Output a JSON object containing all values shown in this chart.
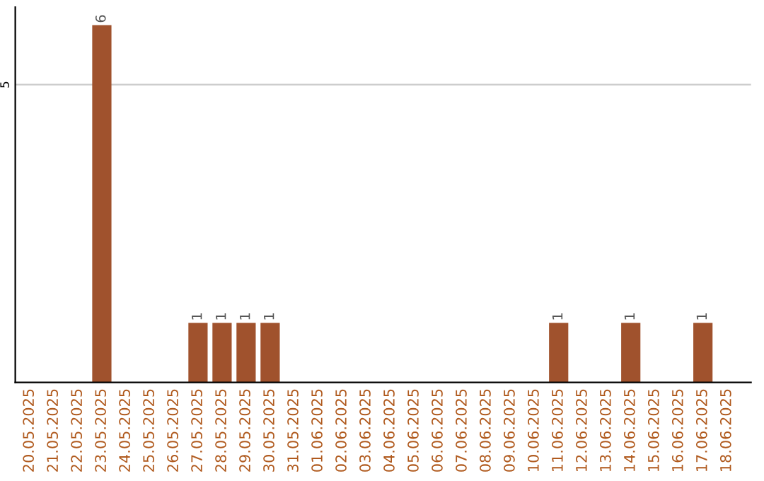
{
  "chart_data": {
    "type": "bar",
    "categories": [
      "20.05.2025",
      "21.05.2025",
      "22.05.2025",
      "23.05.2025",
      "24.05.2025",
      "25.05.2025",
      "26.05.2025",
      "27.05.2025",
      "28.05.2025",
      "29.05.2025",
      "30.05.2025",
      "31.05.2025",
      "01.06.2025",
      "02.06.2025",
      "03.06.2025",
      "04.06.2025",
      "05.06.2025",
      "06.06.2025",
      "07.06.2025",
      "08.06.2025",
      "09.06.2025",
      "10.06.2025",
      "11.06.2025",
      "12.06.2025",
      "13.06.2025",
      "14.06.2025",
      "15.06.2025",
      "16.06.2025",
      "17.06.2025",
      "18.06.2025"
    ],
    "values": [
      0,
      0,
      0,
      6,
      0,
      0,
      0,
      1,
      1,
      1,
      1,
      0,
      0,
      0,
      0,
      0,
      0,
      0,
      0,
      0,
      0,
      0,
      1,
      0,
      0,
      1,
      0,
      0,
      1,
      0
    ],
    "value_labels": [
      null,
      null,
      null,
      "6",
      null,
      null,
      null,
      "1",
      "1",
      "1",
      "1",
      null,
      null,
      null,
      null,
      null,
      null,
      null,
      null,
      null,
      null,
      null,
      "1",
      null,
      null,
      "1",
      null,
      null,
      "1",
      null
    ],
    "color": "#a0522d",
    "ylim": [
      0,
      6.3
    ],
    "yticks": [
      5
    ],
    "grid": "y"
  }
}
